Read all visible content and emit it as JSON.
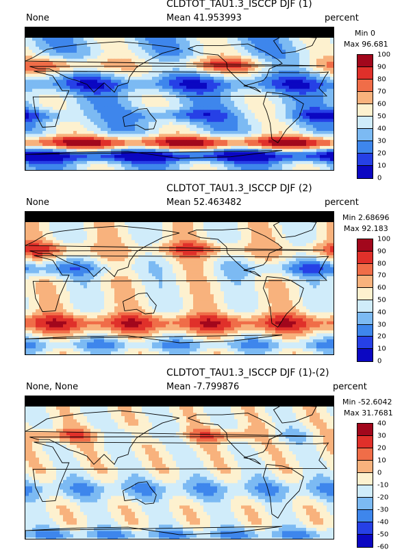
{
  "palette_abs": [
    "#0b07c2",
    "#2640e6",
    "#3e86ec",
    "#7cbaf3",
    "#d0ecfa",
    "#fdf1cf",
    "#f8b27d",
    "#f06d48",
    "#e0302a",
    "#a2071c"
  ],
  "palette_diff": [
    "#0b07c2",
    "#2640e6",
    "#3e86ec",
    "#7cbaf3",
    "#d0ecfa",
    "#fdf1cf",
    "#f8b27d",
    "#f06d48",
    "#e0302a",
    "#a2071c"
  ],
  "panels": [
    {
      "title": "CLDTOT_TAU1.3_ISCCP DJF (1)",
      "left_label": "None",
      "mean_label": "Mean 41.953993",
      "units": "percent",
      "min_label": "Min 0",
      "max_label": "Max 96.681",
      "levels": [
        "100",
        "90",
        "80",
        "70",
        "60",
        "50",
        "40",
        "30",
        "20",
        "10",
        "0"
      ],
      "pattern": "model"
    },
    {
      "title": "CLDTOT_TAU1.3_ISCCP DJF (2)",
      "left_label": "None",
      "mean_label": "Mean 52.463482",
      "units": "percent",
      "min_label": "Min 2.68696",
      "max_label": "Max 92.183",
      "levels": [
        "100",
        "90",
        "80",
        "70",
        "60",
        "50",
        "40",
        "30",
        "20",
        "10",
        "0"
      ],
      "pattern": "obs"
    },
    {
      "title": "CLDTOT_TAU1.3_ISCCP DJF (1)-(2)",
      "left_label": "None, None",
      "mean_label": "Mean -7.799876",
      "units": "percent",
      "min_label": "Min -52.6042",
      "max_label": "Max 31.7681",
      "levels": [
        "40",
        "30",
        "20",
        "10",
        "0",
        "-10",
        "-20",
        "-30",
        "-40",
        "-50",
        "-60"
      ],
      "pattern": "diff"
    }
  ],
  "chart_data": [
    {
      "type": "heatmap",
      "title": "CLDTOT_TAU1.3_ISCCP DJF (1)",
      "units": "percent",
      "mean": 41.953993,
      "min": 0,
      "max": 96.681,
      "contour_levels": [
        0,
        10,
        20,
        30,
        40,
        50,
        60,
        70,
        80,
        90,
        100
      ]
    },
    {
      "type": "heatmap",
      "title": "CLDTOT_TAU1.3_ISCCP DJF (2)",
      "units": "percent",
      "mean": 52.463482,
      "min": 2.68696,
      "max": 92.183,
      "contour_levels": [
        0,
        10,
        20,
        30,
        40,
        50,
        60,
        70,
        80,
        90,
        100
      ]
    },
    {
      "type": "heatmap",
      "title": "CLDTOT_TAU1.3_ISCCP DJF (1)-(2)",
      "units": "percent",
      "mean": -7.799876,
      "min": -52.6042,
      "max": 31.7681,
      "contour_levels": [
        -60,
        -50,
        -40,
        -30,
        -20,
        -10,
        0,
        10,
        20,
        30,
        40
      ]
    }
  ]
}
